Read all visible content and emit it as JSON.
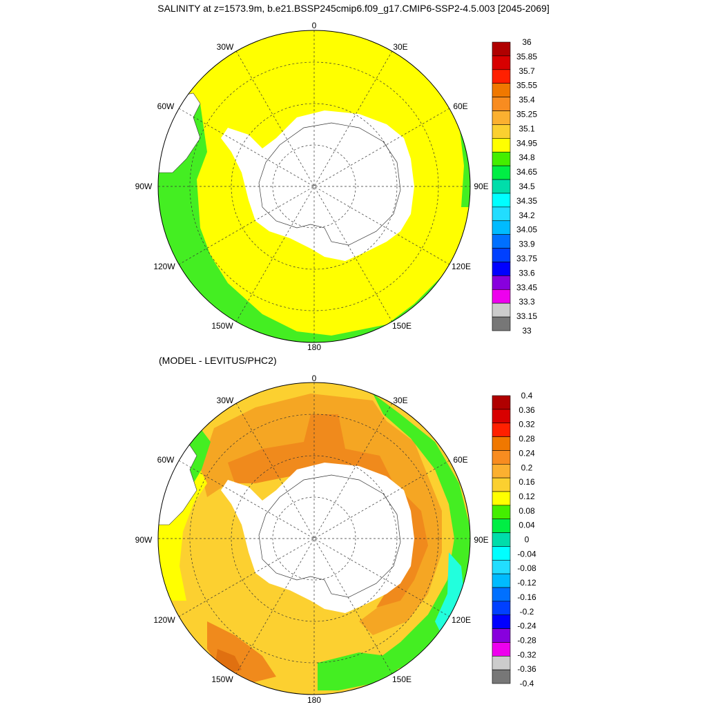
{
  "title": "SALINITY at z=1573.9m, b.e21.BSSP245cmip6.f09_g17.CMIP6-SSP2-4.5.003 [2045-2069]",
  "subtitle": "(MODEL - LEVITUS/PHC2)",
  "longitude_labels": {
    "n": "0",
    "ne30": "30E",
    "ne60": "60E",
    "e90": "90E",
    "se120": "120E",
    "se150": "150E",
    "s": "180",
    "sw150": "150W",
    "sw120": "120W",
    "w90": "90W",
    "nw60": "60W",
    "nw30": "30W"
  },
  "colors": {
    "ocean_yellow": "#ffff00",
    "ocean_green": "#44ee22",
    "diff_orange": "#f5a623",
    "diff_dark_orange": "#f08a1c",
    "diff_gold": "#fcd030",
    "diff_green": "#44ee22",
    "diff_cyan": "#22ffdd",
    "land": "#ffffff"
  },
  "chart_data": [
    {
      "type": "heatmap",
      "title": "SALINITY at z=1573.9m, b.e21.BSSP245cmip6.f09_g17.CMIP6-SSP2-4.5.003 [2045-2069]",
      "projection": "south-polar-stereographic",
      "colorbar": {
        "labels": [
          "36",
          "35.85",
          "35.7",
          "35.55",
          "35.4",
          "35.25",
          "35.1",
          "34.95",
          "34.8",
          "34.65",
          "34.5",
          "34.35",
          "34.2",
          "34.05",
          "33.9",
          "33.75",
          "33.6",
          "33.45",
          "33.3",
          "33.15",
          "33"
        ],
        "colors": [
          "#b00000",
          "#d80000",
          "#ff2000",
          "#f07800",
          "#f88c20",
          "#fbb030",
          "#fbd030",
          "#ffff00",
          "#44ee00",
          "#00ee44",
          "#00ddaa",
          "#00ffff",
          "#22ddff",
          "#00bbff",
          "#0070ff",
          "#0040ff",
          "#0000ff",
          "#8800dd",
          "#ee00ee",
          "#cccccc",
          "#777777"
        ]
      }
    },
    {
      "type": "heatmap",
      "title": "(MODEL - LEVITUS/PHC2)",
      "projection": "south-polar-stereographic",
      "colorbar": {
        "labels": [
          "0.4",
          "0.36",
          "0.32",
          "0.28",
          "0.24",
          "0.2",
          "0.16",
          "0.12",
          "0.08",
          "0.04",
          "0",
          "-0.04",
          "-0.08",
          "-0.12",
          "-0.16",
          "-0.2",
          "-0.24",
          "-0.28",
          "-0.32",
          "-0.36",
          "-0.4"
        ],
        "colors": [
          "#b00000",
          "#d80000",
          "#ff2000",
          "#f07800",
          "#f88c20",
          "#fbb030",
          "#fbd030",
          "#ffff00",
          "#44ee00",
          "#00ee44",
          "#00ddaa",
          "#00ffff",
          "#22ddff",
          "#00bbff",
          "#0070ff",
          "#0040ff",
          "#0000ff",
          "#8800dd",
          "#ee00ee",
          "#cccccc",
          "#777777"
        ]
      }
    }
  ]
}
